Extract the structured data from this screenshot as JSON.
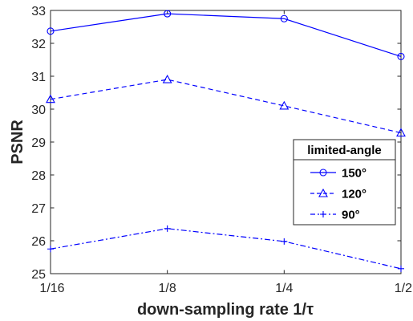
{
  "chart_data": {
    "type": "line",
    "xlabel": "down-sampling rate 1/τ",
    "ylabel": "PSNR",
    "categories": [
      "1/16",
      "1/8",
      "1/4",
      "1/2"
    ],
    "ylim": [
      25,
      33
    ],
    "yticks": [
      "25",
      "26",
      "27",
      "28",
      "29",
      "30",
      "31",
      "32",
      "33"
    ],
    "grid": false,
    "legend": {
      "title": "limited-angle",
      "placement": "right-middle"
    },
    "color": "#0000ff",
    "series": [
      {
        "name": "150°",
        "values": [
          32.37,
          32.9,
          32.75,
          31.6
        ],
        "linestyle": "solid",
        "marker": "circle"
      },
      {
        "name": "120°",
        "values": [
          30.3,
          30.9,
          30.1,
          29.28
        ],
        "linestyle": "dashed",
        "marker": "triangle"
      },
      {
        "name": "90°",
        "values": [
          25.75,
          26.37,
          25.98,
          25.15
        ],
        "linestyle": "dashdot",
        "marker": "plus"
      }
    ]
  }
}
